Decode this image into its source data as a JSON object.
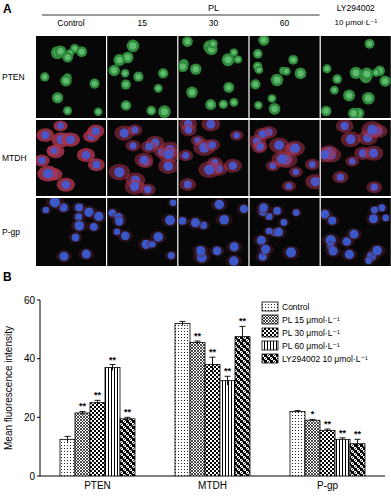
{
  "panel_labels": [
    "A",
    "B"
  ],
  "panel_a": {
    "group_label": "PL",
    "columns": [
      "Control",
      "15",
      "30",
      "60",
      "LY294002"
    ],
    "ly_dose": "10 μmol·L⁻¹",
    "rows": [
      "PTEN",
      "MTDH",
      "P-gp"
    ]
  },
  "chart_data": {
    "type": "bar",
    "y_label": "Mean fluorescence intensity",
    "categories": [
      "PTEN",
      "MTDH",
      "P-gp"
    ],
    "series": [
      {
        "name": "Control",
        "color": "#000000",
        "values": [
          12.5,
          52,
          22
        ],
        "errors": [
          1,
          0.7,
          0.3
        ],
        "significance": [
          null,
          null,
          null
        ]
      },
      {
        "name": "PL 15 μmol·L⁻¹",
        "color": "#000000",
        "values": [
          21.5,
          45.5,
          19
        ],
        "errors": [
          0.5,
          0.5,
          0.3
        ],
        "significance": [
          "**",
          "**",
          "*"
        ]
      },
      {
        "name": "PL 30 μmol·L⁻¹",
        "color": "#000000",
        "values": [
          25,
          38,
          15.5
        ],
        "errors": [
          0.8,
          2.5,
          0.5
        ],
        "significance": [
          "**",
          "**",
          "**"
        ]
      },
      {
        "name": "PL 60 μmol·L⁻¹",
        "color": "#000000",
        "values": [
          37,
          32.5,
          12.5
        ],
        "errors": [
          1,
          1.5,
          0.5
        ],
        "significance": [
          "**",
          "**",
          "**"
        ]
      },
      {
        "name": "LY294002 10 μmol·L⁻¹",
        "color": "#000000",
        "values": [
          19.5,
          47.5,
          11
        ],
        "errors": [
          0.5,
          3.5,
          1.5
        ],
        "significance": [
          "**",
          "**",
          "**"
        ]
      }
    ],
    "ylim": [
      0,
      60
    ],
    "yticks": [
      0,
      20,
      40,
      60
    ],
    "grid": false,
    "legend": "top-right"
  }
}
